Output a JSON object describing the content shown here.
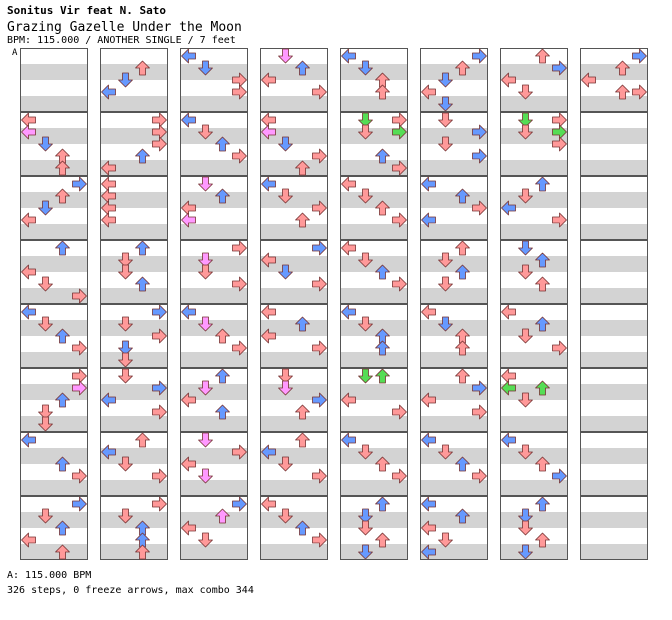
{
  "header": {
    "artist": "Sonitus Vir feat N. Sato",
    "title": "Grazing Gazelle Under the Moon",
    "meta": "BPM: 115.000 / ANOTHER SINGLE / 7 feet"
  },
  "section_marker": "A",
  "footer": {
    "bpm_line": "A: 115.000 BPM",
    "stats_line": "326 steps, 0 freeze arrows, max combo 344"
  },
  "colors": {
    "quarter": "#ff9999",
    "eighth": "#6699ff",
    "sixteenth": "#ff99ff",
    "jump_green": "#55dd55",
    "stripe": "#d3d3d3"
  },
  "chart_data": {
    "type": "stepchart",
    "lanes": [
      "left",
      "down",
      "up",
      "right"
    ],
    "columns": 8,
    "measures_per_column": 8,
    "notes_format": "[column, measure, beat_position, lane, color_key]",
    "notes": [
      [
        0,
        1,
        0,
        0,
        "quarter"
      ],
      [
        0,
        1,
        0.5,
        0,
        "sixteenth"
      ],
      [
        0,
        1,
        1,
        1,
        "eighth"
      ],
      [
        0,
        1,
        1.5,
        2,
        "quarter"
      ],
      [
        0,
        1,
        2,
        2,
        "quarter"
      ],
      [
        0,
        2,
        0,
        3,
        "eighth"
      ],
      [
        0,
        2,
        0.5,
        2,
        "quarter"
      ],
      [
        0,
        2,
        1,
        1,
        "eighth"
      ],
      [
        0,
        2,
        1.5,
        0,
        "quarter"
      ],
      [
        0,
        3,
        0,
        2,
        "eighth"
      ],
      [
        0,
        3,
        1,
        0,
        "quarter"
      ],
      [
        0,
        3,
        1.5,
        1,
        "quarter"
      ],
      [
        0,
        3,
        2,
        3,
        "quarter"
      ],
      [
        0,
        4,
        0,
        0,
        "eighth"
      ],
      [
        0,
        4,
        0.5,
        1,
        "quarter"
      ],
      [
        0,
        4,
        1,
        2,
        "eighth"
      ],
      [
        0,
        4,
        1.5,
        3,
        "quarter"
      ],
      [
        0,
        5,
        0,
        3,
        "quarter"
      ],
      [
        0,
        5,
        0.5,
        3,
        "sixteenth"
      ],
      [
        0,
        5,
        1,
        2,
        "eighth"
      ],
      [
        0,
        5,
        1.5,
        1,
        "quarter"
      ],
      [
        0,
        5,
        2,
        1,
        "quarter"
      ],
      [
        0,
        6,
        0,
        0,
        "eighth"
      ],
      [
        0,
        6,
        1,
        2,
        "eighth"
      ],
      [
        0,
        6,
        1.5,
        3,
        "quarter"
      ],
      [
        0,
        7,
        0,
        3,
        "eighth"
      ],
      [
        0,
        7,
        0.5,
        1,
        "quarter"
      ],
      [
        0,
        7,
        1,
        2,
        "eighth"
      ],
      [
        0,
        7,
        1.5,
        0,
        "quarter"
      ],
      [
        0,
        7,
        2,
        2,
        "quarter"
      ],
      [
        1,
        0,
        0.5,
        2,
        "quarter"
      ],
      [
        1,
        0,
        1,
        1,
        "eighth"
      ],
      [
        1,
        0,
        1.5,
        0,
        "eighth"
      ],
      [
        1,
        1,
        0,
        3,
        "quarter"
      ],
      [
        1,
        1,
        0.5,
        3,
        "quarter"
      ],
      [
        1,
        1,
        1,
        3,
        "quarter"
      ],
      [
        1,
        1,
        1.5,
        2,
        "eighth"
      ],
      [
        1,
        1,
        2,
        0,
        "quarter"
      ],
      [
        1,
        2,
        0,
        0,
        "quarter"
      ],
      [
        1,
        2,
        0.5,
        0,
        "quarter"
      ],
      [
        1,
        2,
        1,
        0,
        "quarter"
      ],
      [
        1,
        2,
        1.5,
        0,
        "quarter"
      ],
      [
        1,
        3,
        0,
        2,
        "eighth"
      ],
      [
        1,
        3,
        0.5,
        1,
        "quarter"
      ],
      [
        1,
        3,
        1,
        1,
        "quarter"
      ],
      [
        1,
        3,
        1.5,
        2,
        "eighth"
      ],
      [
        1,
        4,
        0,
        3,
        "eighth"
      ],
      [
        1,
        4,
        0.5,
        1,
        "quarter"
      ],
      [
        1,
        4,
        1,
        3,
        "quarter"
      ],
      [
        1,
        4,
        1.5,
        1,
        "eighth"
      ],
      [
        1,
        4,
        2,
        1,
        "quarter"
      ],
      [
        1,
        5,
        0,
        1,
        "quarter"
      ],
      [
        1,
        5,
        0.5,
        3,
        "eighth"
      ],
      [
        1,
        5,
        1,
        0,
        "eighth"
      ],
      [
        1,
        5,
        1.5,
        3,
        "quarter"
      ],
      [
        1,
        6,
        0,
        2,
        "quarter"
      ],
      [
        1,
        6,
        0.5,
        0,
        "eighth"
      ],
      [
        1,
        6,
        1,
        1,
        "quarter"
      ],
      [
        1,
        6,
        1.5,
        3,
        "quarter"
      ],
      [
        1,
        7,
        0,
        3,
        "quarter"
      ],
      [
        1,
        7,
        0.5,
        1,
        "quarter"
      ],
      [
        1,
        7,
        1,
        2,
        "eighth"
      ],
      [
        1,
        7,
        1.5,
        2,
        "eighth"
      ],
      [
        1,
        7,
        2,
        2,
        "quarter"
      ],
      [
        2,
        0,
        0,
        0,
        "eighth"
      ],
      [
        2,
        0,
        0.5,
        1,
        "eighth"
      ],
      [
        2,
        0,
        1,
        3,
        "quarter"
      ],
      [
        2,
        0,
        1.5,
        3,
        "quarter"
      ],
      [
        2,
        1,
        0,
        0,
        "eighth"
      ],
      [
        2,
        1,
        0.5,
        1,
        "quarter"
      ],
      [
        2,
        1,
        1,
        2,
        "eighth"
      ],
      [
        2,
        1,
        1.5,
        3,
        "quarter"
      ],
      [
        2,
        2,
        0,
        1,
        "sixteenth"
      ],
      [
        2,
        2,
        0.5,
        2,
        "eighth"
      ],
      [
        2,
        2,
        1,
        0,
        "quarter"
      ],
      [
        2,
        2,
        1.5,
        0,
        "sixteenth"
      ],
      [
        2,
        3,
        0,
        3,
        "quarter"
      ],
      [
        2,
        3,
        0.5,
        1,
        "sixteenth"
      ],
      [
        2,
        3,
        1,
        1,
        "quarter"
      ],
      [
        2,
        3,
        1.5,
        3,
        "quarter"
      ],
      [
        2,
        4,
        0,
        0,
        "eighth"
      ],
      [
        2,
        4,
        0.5,
        1,
        "sixteenth"
      ],
      [
        2,
        4,
        1,
        2,
        "quarter"
      ],
      [
        2,
        4,
        1.5,
        3,
        "quarter"
      ],
      [
        2,
        5,
        0,
        2,
        "eighth"
      ],
      [
        2,
        5,
        0.5,
        1,
        "sixteenth"
      ],
      [
        2,
        5,
        1,
        0,
        "quarter"
      ],
      [
        2,
        5,
        1.5,
        2,
        "eighth"
      ],
      [
        2,
        6,
        0,
        1,
        "sixteenth"
      ],
      [
        2,
        6,
        0.5,
        3,
        "quarter"
      ],
      [
        2,
        6,
        1,
        0,
        "quarter"
      ],
      [
        2,
        6,
        1.5,
        1,
        "sixteenth"
      ],
      [
        2,
        7,
        0,
        3,
        "eighth"
      ],
      [
        2,
        7,
        0.5,
        2,
        "sixteenth"
      ],
      [
        2,
        7,
        1,
        0,
        "quarter"
      ],
      [
        2,
        7,
        1.5,
        1,
        "quarter"
      ],
      [
        3,
        0,
        0,
        1,
        "sixteenth"
      ],
      [
        3,
        0,
        0.5,
        2,
        "eighth"
      ],
      [
        3,
        0,
        1,
        0,
        "quarter"
      ],
      [
        3,
        0,
        1.5,
        3,
        "quarter"
      ],
      [
        3,
        1,
        0,
        0,
        "quarter"
      ],
      [
        3,
        1,
        0.5,
        0,
        "sixteenth"
      ],
      [
        3,
        1,
        1,
        1,
        "eighth"
      ],
      [
        3,
        1,
        1.5,
        3,
        "quarter"
      ],
      [
        3,
        1,
        2,
        2,
        "quarter"
      ],
      [
        3,
        2,
        0,
        0,
        "eighth"
      ],
      [
        3,
        2,
        0.5,
        1,
        "quarter"
      ],
      [
        3,
        2,
        1,
        3,
        "quarter"
      ],
      [
        3,
        2,
        1.5,
        2,
        "quarter"
      ],
      [
        3,
        3,
        0,
        3,
        "eighth"
      ],
      [
        3,
        3,
        0.5,
        0,
        "quarter"
      ],
      [
        3,
        3,
        1,
        1,
        "eighth"
      ],
      [
        3,
        3,
        1.5,
        3,
        "quarter"
      ],
      [
        3,
        4,
        0,
        0,
        "quarter"
      ],
      [
        3,
        4,
        0.5,
        2,
        "eighth"
      ],
      [
        3,
        4,
        1,
        0,
        "quarter"
      ],
      [
        3,
        4,
        1.5,
        3,
        "quarter"
      ],
      [
        3,
        5,
        0,
        1,
        "quarter"
      ],
      [
        3,
        5,
        0.5,
        1,
        "sixteenth"
      ],
      [
        3,
        5,
        1,
        3,
        "eighth"
      ],
      [
        3,
        5,
        1.5,
        2,
        "quarter"
      ],
      [
        3,
        6,
        0,
        2,
        "quarter"
      ],
      [
        3,
        6,
        0.5,
        0,
        "eighth"
      ],
      [
        3,
        6,
        1,
        1,
        "quarter"
      ],
      [
        3,
        6,
        1.5,
        3,
        "quarter"
      ],
      [
        3,
        7,
        0,
        0,
        "quarter"
      ],
      [
        3,
        7,
        0.5,
        1,
        "quarter"
      ],
      [
        3,
        7,
        1,
        2,
        "eighth"
      ],
      [
        3,
        7,
        1.5,
        3,
        "quarter"
      ],
      [
        4,
        0,
        0,
        0,
        "eighth"
      ],
      [
        4,
        0,
        0.5,
        1,
        "eighth"
      ],
      [
        4,
        0,
        1,
        2,
        "quarter"
      ],
      [
        4,
        0,
        1.5,
        2,
        "quarter"
      ],
      [
        4,
        1,
        0,
        1,
        "jump_green"
      ],
      [
        4,
        1,
        0,
        3,
        "quarter"
      ],
      [
        4,
        1,
        0.5,
        1,
        "quarter"
      ],
      [
        4,
        1,
        0.5,
        3,
        "jump_green"
      ],
      [
        4,
        1,
        1.5,
        2,
        "eighth"
      ],
      [
        4,
        1,
        2,
        3,
        "quarter"
      ],
      [
        4,
        2,
        0,
        0,
        "quarter"
      ],
      [
        4,
        2,
        0.5,
        1,
        "quarter"
      ],
      [
        4,
        2,
        1,
        2,
        "quarter"
      ],
      [
        4,
        2,
        1.5,
        3,
        "quarter"
      ],
      [
        4,
        3,
        0,
        0,
        "quarter"
      ],
      [
        4,
        3,
        0.5,
        1,
        "quarter"
      ],
      [
        4,
        3,
        1,
        2,
        "eighth"
      ],
      [
        4,
        3,
        1.5,
        3,
        "quarter"
      ],
      [
        4,
        4,
        0,
        0,
        "eighth"
      ],
      [
        4,
        4,
        0.5,
        1,
        "quarter"
      ],
      [
        4,
        4,
        1,
        2,
        "eighth"
      ],
      [
        4,
        4,
        1.5,
        2,
        "eighth"
      ],
      [
        4,
        5,
        0,
        1,
        "jump_green"
      ],
      [
        4,
        5,
        0,
        2,
        "jump_green"
      ],
      [
        4,
        5,
        1,
        0,
        "quarter"
      ],
      [
        4,
        5,
        1.5,
        3,
        "quarter"
      ],
      [
        4,
        6,
        0,
        0,
        "eighth"
      ],
      [
        4,
        6,
        0.5,
        1,
        "quarter"
      ],
      [
        4,
        6,
        1,
        2,
        "quarter"
      ],
      [
        4,
        6,
        1.5,
        3,
        "quarter"
      ],
      [
        4,
        7,
        0,
        2,
        "eighth"
      ],
      [
        4,
        7,
        0.5,
        1,
        "eighth"
      ],
      [
        4,
        7,
        1,
        1,
        "quarter"
      ],
      [
        4,
        7,
        1.5,
        2,
        "quarter"
      ],
      [
        4,
        7,
        2,
        1,
        "eighth"
      ],
      [
        5,
        0,
        0,
        3,
        "eighth"
      ],
      [
        5,
        0,
        0.5,
        2,
        "quarter"
      ],
      [
        5,
        0,
        1,
        1,
        "eighth"
      ],
      [
        5,
        0,
        1.5,
        0,
        "quarter"
      ],
      [
        5,
        0,
        2,
        1,
        "eighth"
      ],
      [
        5,
        1,
        0,
        1,
        "quarter"
      ],
      [
        5,
        1,
        0.5,
        3,
        "eighth"
      ],
      [
        5,
        1,
        1,
        1,
        "quarter"
      ],
      [
        5,
        1,
        1.5,
        3,
        "eighth"
      ],
      [
        5,
        2,
        0,
        0,
        "eighth"
      ],
      [
        5,
        2,
        0.5,
        2,
        "eighth"
      ],
      [
        5,
        2,
        1,
        3,
        "quarter"
      ],
      [
        5,
        2,
        1.5,
        0,
        "eighth"
      ],
      [
        5,
        3,
        0,
        2,
        "quarter"
      ],
      [
        5,
        3,
        0.5,
        1,
        "quarter"
      ],
      [
        5,
        3,
        1,
        2,
        "eighth"
      ],
      [
        5,
        3,
        1.5,
        1,
        "quarter"
      ],
      [
        5,
        4,
        0,
        0,
        "quarter"
      ],
      [
        5,
        4,
        0.5,
        1,
        "eighth"
      ],
      [
        5,
        4,
        1,
        2,
        "quarter"
      ],
      [
        5,
        4,
        1.5,
        2,
        "quarter"
      ],
      [
        5,
        5,
        0,
        2,
        "quarter"
      ],
      [
        5,
        5,
        0.5,
        3,
        "eighth"
      ],
      [
        5,
        5,
        1,
        0,
        "quarter"
      ],
      [
        5,
        5,
        1.5,
        3,
        "quarter"
      ],
      [
        5,
        6,
        0,
        0,
        "eighth"
      ],
      [
        5,
        6,
        0.5,
        1,
        "quarter"
      ],
      [
        5,
        6,
        1,
        2,
        "eighth"
      ],
      [
        5,
        6,
        1.5,
        3,
        "quarter"
      ],
      [
        5,
        7,
        0,
        0,
        "eighth"
      ],
      [
        5,
        7,
        0.5,
        2,
        "eighth"
      ],
      [
        5,
        7,
        1,
        0,
        "quarter"
      ],
      [
        5,
        7,
        1.5,
        1,
        "quarter"
      ],
      [
        5,
        7,
        2,
        0,
        "eighth"
      ],
      [
        6,
        0,
        0,
        2,
        "quarter"
      ],
      [
        6,
        0,
        0.5,
        3,
        "eighth"
      ],
      [
        6,
        0,
        1,
        0,
        "quarter"
      ],
      [
        6,
        0,
        1.5,
        1,
        "quarter"
      ],
      [
        6,
        1,
        0,
        1,
        "jump_green"
      ],
      [
        6,
        1,
        0,
        3,
        "quarter"
      ],
      [
        6,
        1,
        0.5,
        1,
        "quarter"
      ],
      [
        6,
        1,
        0.5,
        3,
        "jump_green"
      ],
      [
        6,
        1,
        1,
        3,
        "quarter"
      ],
      [
        6,
        2,
        0,
        2,
        "eighth"
      ],
      [
        6,
        2,
        0.5,
        1,
        "quarter"
      ],
      [
        6,
        2,
        1,
        0,
        "eighth"
      ],
      [
        6,
        2,
        1.5,
        3,
        "quarter"
      ],
      [
        6,
        3,
        0,
        1,
        "eighth"
      ],
      [
        6,
        3,
        0.5,
        2,
        "eighth"
      ],
      [
        6,
        3,
        1,
        1,
        "quarter"
      ],
      [
        6,
        3,
        1.5,
        2,
        "quarter"
      ],
      [
        6,
        4,
        0,
        0,
        "quarter"
      ],
      [
        6,
        4,
        0.5,
        2,
        "eighth"
      ],
      [
        6,
        4,
        1,
        1,
        "quarter"
      ],
      [
        6,
        4,
        1.5,
        3,
        "quarter"
      ],
      [
        6,
        5,
        0,
        0,
        "quarter"
      ],
      [
        6,
        5,
        0.5,
        0,
        "jump_green"
      ],
      [
        6,
        5,
        0.5,
        2,
        "jump_green"
      ],
      [
        6,
        5,
        1,
        1,
        "quarter"
      ],
      [
        6,
        6,
        0,
        0,
        "eighth"
      ],
      [
        6,
        6,
        0.5,
        1,
        "quarter"
      ],
      [
        6,
        6,
        1,
        2,
        "quarter"
      ],
      [
        6,
        6,
        1.5,
        3,
        "eighth"
      ],
      [
        6,
        7,
        0,
        2,
        "eighth"
      ],
      [
        6,
        7,
        0.5,
        1,
        "eighth"
      ],
      [
        6,
        7,
        1,
        1,
        "quarter"
      ],
      [
        6,
        7,
        1.5,
        2,
        "quarter"
      ],
      [
        6,
        7,
        2,
        1,
        "eighth"
      ],
      [
        7,
        0,
        0,
        3,
        "eighth"
      ],
      [
        7,
        0,
        0.5,
        2,
        "quarter"
      ],
      [
        7,
        0,
        1,
        0,
        "quarter"
      ],
      [
        7,
        0,
        1.5,
        2,
        "quarter"
      ],
      [
        7,
        0,
        1.5,
        3,
        "quarter"
      ]
    ]
  }
}
